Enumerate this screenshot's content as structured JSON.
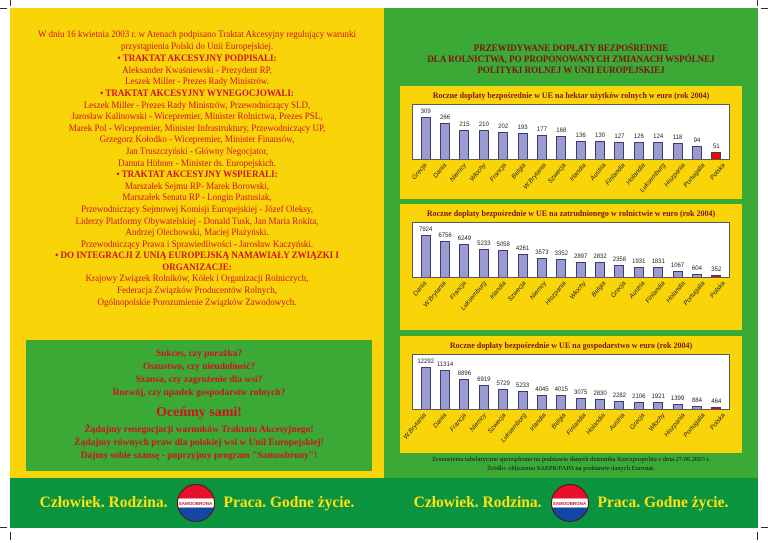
{
  "colors": {
    "yellow": "#f8d408",
    "green": "#3aa935",
    "strip_green": "#0a9440",
    "red_text": "#cf1120",
    "dark_red": "#801210",
    "strip_yellow": "#ffe011",
    "bar_fill": "#9b9bd3",
    "bar_highlight": "#ff0000"
  },
  "left_panel": {
    "intro": "W dniu 16 kwietnia 2003 r. w Atenach podpisano Traktat Akcesyjny regulujący warunki przystąpienia Polski do Unii Europejskiej.",
    "sections": [
      {
        "heading": "• TRAKTAT AKCESYJNY PODPISALI:",
        "lines": [
          "Aleksander Kwaśniewski - Prezydent RP,",
          "Leszek Miller - Prezes Rady Ministrów."
        ]
      },
      {
        "heading": "• TRAKTAT AKCESYJNY WYNEGOCJOWALI:",
        "lines": [
          "Leszek Miller - Prezes Rady Ministrów, Przewodniczący SLD,",
          "Jarosław Kalinowski - Wicepremier, Minister Rolnictwa, Prezes PSL,",
          "Marek Pol - Wicepremier, Minister Infrastruktury, Przewodniczący UP,",
          "Grzegorz Kołodko - Wicepremier, Minister Finansów,",
          "Jan Truszczyński - Główny Negocjator,",
          "Danuta Hübner - Minister ds. Europejskich."
        ]
      },
      {
        "heading": "• TRAKTAT AKCESYJNY WSPIERALI:",
        "lines": [
          "Marszałek Sejmu RP- Marek Borowski,",
          "Marszałek Senatu RP - Longin Pastusiak,",
          "Przewodniczący Sejmowej Komisji Europejskiej - Józef Oleksy,",
          "Liderzy Platformy Obywatelskiej - Donald Tusk, Jan Maria Rokita,",
          "Andrzej Olechowski, Maciej Płażyński.",
          "Przewodniczący Prawa i Sprawiedliwości - Jarosław Kaczyński."
        ]
      },
      {
        "heading": "• DO INTEGRACJI Z UNIĄ EUROPEJSKĄ NAMAWIAŁY ZWIĄZKI I ORGANIZACJE:",
        "lines": [
          "Krajowy Związek Rolników, Kółek i Organizacji Rolniczych,",
          "Federacja Związków Producentów Rolnych,",
          "Ogólnopolskie Porozumienie Związków Zawodowych."
        ]
      }
    ],
    "green_box": {
      "questions": [
        "Sukces, czy porażka?",
        "Oszustwo, czy nieudolność?",
        "Szansa, czy zagrożenie dla wsi?",
        "Rozwój, czy upadek gospodarstw rolnych?"
      ],
      "cta": "Oceńmy sami!",
      "demands": [
        "Żądajmy renegocjacji warunków Traktatu Akcesyjnego!",
        "Żądajmy równych praw dla polskiej wsi w Unii Europejskiej!",
        "Dajmy sobie szansę - poprzyjmy program \"Samoobrony\"!"
      ]
    }
  },
  "right_panel": {
    "title_lines": [
      "PRZEWIDYWANE DOPŁATY BEZPOŚREDNIE",
      "DLA ROLNICTWA, PO PROPONOWANYCH ZMIANACH WSPÓLNEJ",
      "POLITYKI ROLNEJ W UNII EUROPEJSKIEJ"
    ],
    "footnotes": [
      "Zestawienia tabelaryczne sporządzono na podstawie danych dziennika Rzeczpospolita z dnia 27.06.2003 r.",
      "Źródło: obliczenia SAEPR/FAPA na podstawie danych Eurostat."
    ]
  },
  "chart_data": [
    {
      "type": "bar",
      "title": "Roczne dopłaty bezpośrednie w UE na hektar użytków rolnych w euro (rok 2004)",
      "categories": [
        "Grecja",
        "Dania",
        "Niemcy",
        "Włochy",
        "Francja",
        "Belgia",
        "W.Brytania",
        "Szwecja",
        "Irlandia",
        "Austria",
        "Finlandia",
        "Holandia",
        "Luksemburg",
        "Hiszpania",
        "Portugalia",
        "Polska"
      ],
      "values": [
        309,
        266,
        215,
        210,
        202,
        193,
        177,
        168,
        136,
        130,
        127,
        126,
        124,
        118,
        94,
        51
      ],
      "highlight_category": "Polska",
      "bar_color": "#9b9bd3",
      "highlight_color": "#ff0000",
      "value_labels": true,
      "legend": "none"
    },
    {
      "type": "bar",
      "title": "Roczne dopłaty bezpośrednie w UE na zatrudnionego w rolnictwie w euro (rok 2004)",
      "categories": [
        "Dania",
        "W.Brytania",
        "Francja",
        "Luksemburg",
        "Irlandia",
        "Szwecja",
        "Niemcy",
        "Hiszpania",
        "Włochy",
        "Belgia",
        "Grecja",
        "Austria",
        "Finlandia",
        "Holandia",
        "Portugalia",
        "Polska"
      ],
      "values": [
        7924,
        6756,
        6249,
        5233,
        5058,
        4261,
        3573,
        3352,
        2897,
        2832,
        2358,
        1931,
        1831,
        1067,
        604,
        352
      ],
      "highlight_category": "Polska",
      "bar_color": "#9b9bd3",
      "highlight_color": "#ff0000",
      "value_labels": true,
      "legend": "none"
    },
    {
      "type": "bar",
      "title": "Roczne dopłaty bezpośrednie w UE na gospodarstwo w euro (rok 2004)",
      "categories": [
        "W.Brytania",
        "Dania",
        "Francja",
        "Niemcy",
        "Szwecja",
        "Luksemburg",
        "Irlandia",
        "Belgia",
        "Finlandia",
        "Holandia",
        "Austria",
        "Grecja",
        "Włochy",
        "Hiszpania",
        "Portugalia",
        "Polska"
      ],
      "values": [
        12292,
        11314,
        8896,
        6919,
        5729,
        5233,
        4045,
        4015,
        3075,
        2830,
        2282,
        2106,
        1921,
        1399,
        884,
        464
      ],
      "highlight_category": "Polska",
      "bar_color": "#9b9bd3",
      "highlight_color": "#ff0000",
      "value_labels": true,
      "legend": "none"
    }
  ],
  "bottom_strip": {
    "text_left": "Człowiek. Rodzina.",
    "text_right": "Praca. Godne życie.",
    "logo_text": "SAMOOBRONA"
  }
}
